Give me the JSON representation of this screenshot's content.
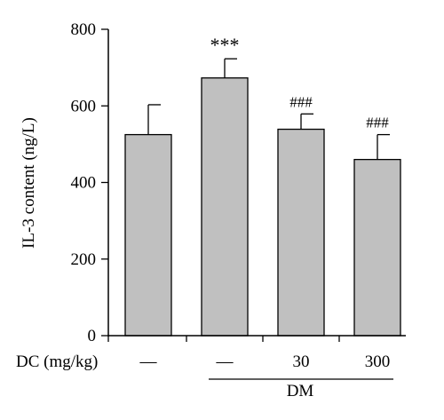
{
  "chart_data": {
    "type": "bar",
    "ylabel": "IL-3 content (ng/L)",
    "ylim": [
      0,
      800
    ],
    "yticks": [
      0,
      200,
      400,
      600,
      800
    ],
    "grid": false,
    "bars": [
      {
        "value": 525,
        "error": 78,
        "annotation": ""
      },
      {
        "value": 673,
        "error": 50,
        "annotation": "***"
      },
      {
        "value": 539,
        "error": 40,
        "annotation": "###"
      },
      {
        "value": 460,
        "error": 65,
        "annotation": "###"
      }
    ],
    "group_row_label": "DC (mg/kg)",
    "dose_labels": [
      "—",
      "—",
      "30",
      "300"
    ],
    "group_underline_label": "DM",
    "bar_color": "#c0c0c0"
  }
}
